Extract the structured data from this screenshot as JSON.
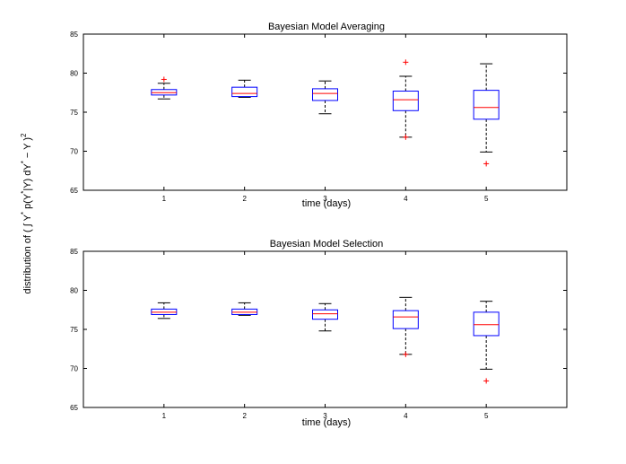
{
  "figure": {
    "ylabel_prefix": "distribution of ( ∫ Y",
    "ylabel_middle": " p(Y",
    "ylabel_mid2": "|Y) dY",
    "ylabel_suffix": " − Y )",
    "ylabel_star": "*",
    "ylabel_sq": "2"
  },
  "chart_data": [
    {
      "type": "boxplot",
      "title": "Bayesian Model Averaging",
      "xlabel": "time (days)",
      "ylabel": "",
      "categories": [
        "1",
        "2",
        "3",
        "4",
        "5"
      ],
      "ylim": [
        65,
        85
      ],
      "yticks": [
        65,
        70,
        75,
        80,
        85
      ],
      "grid": false,
      "boxes": [
        {
          "whisker_low": 76.7,
          "q1": 77.2,
          "median": 77.5,
          "q3": 77.9,
          "whisker_high": 78.7,
          "outliers": [
            79.2
          ]
        },
        {
          "whisker_low": 76.9,
          "q1": 77.0,
          "median": 77.4,
          "q3": 78.2,
          "whisker_high": 79.1,
          "outliers": []
        },
        {
          "whisker_low": 74.8,
          "q1": 76.5,
          "median": 77.4,
          "q3": 78.0,
          "whisker_high": 79.0,
          "outliers": []
        },
        {
          "whisker_low": 71.8,
          "q1": 75.2,
          "median": 76.6,
          "q3": 77.7,
          "whisker_high": 79.6,
          "outliers": [
            81.4,
            71.8
          ]
        },
        {
          "whisker_low": 69.9,
          "q1": 74.1,
          "median": 75.6,
          "q3": 77.8,
          "whisker_high": 81.2,
          "outliers": [
            68.4
          ]
        }
      ]
    },
    {
      "type": "boxplot",
      "title": "Bayesian Model Selection",
      "xlabel": "time (days)",
      "ylabel": "",
      "categories": [
        "1",
        "2",
        "3",
        "4",
        "5"
      ],
      "ylim": [
        65,
        85
      ],
      "yticks": [
        65,
        70,
        75,
        80,
        85
      ],
      "grid": false,
      "boxes": [
        {
          "whisker_low": 76.4,
          "q1": 76.9,
          "median": 77.2,
          "q3": 77.6,
          "whisker_high": 78.4,
          "outliers": []
        },
        {
          "whisker_low": 76.8,
          "q1": 76.9,
          "median": 77.2,
          "q3": 77.6,
          "whisker_high": 78.4,
          "outliers": []
        },
        {
          "whisker_low": 74.8,
          "q1": 76.3,
          "median": 77.0,
          "q3": 77.5,
          "whisker_high": 78.3,
          "outliers": []
        },
        {
          "whisker_low": 71.8,
          "q1": 75.1,
          "median": 76.6,
          "q3": 77.4,
          "whisker_high": 79.1,
          "outliers": [
            71.8
          ]
        },
        {
          "whisker_low": 69.9,
          "q1": 74.2,
          "median": 75.6,
          "q3": 77.2,
          "whisker_high": 78.6,
          "outliers": [
            68.4
          ]
        }
      ]
    }
  ],
  "colors": {
    "box": "#0000ff",
    "median": "#ff0000",
    "outlier": "#ff0000",
    "whisker": "#000000",
    "axes": "#000000"
  }
}
